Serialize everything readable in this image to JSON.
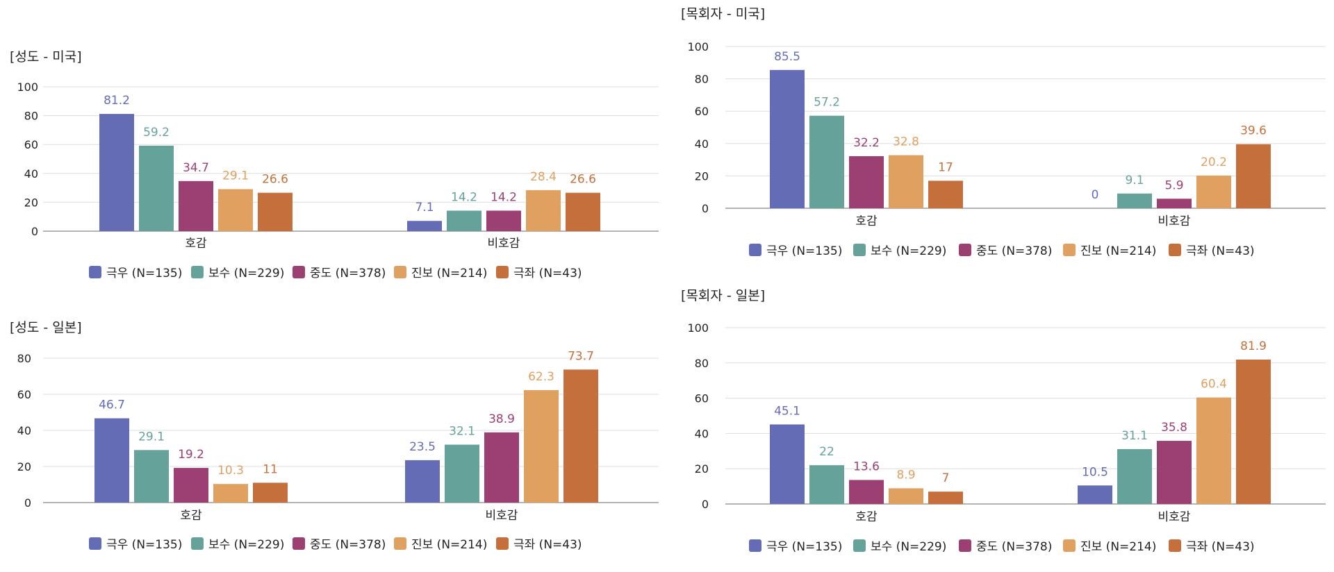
{
  "colors": {
    "gridline": "#dddddd",
    "axis": "#888888"
  },
  "legend": [
    {
      "label": "극우 (N=135)",
      "color": "#646cb6"
    },
    {
      "label": "보수 (N=229)",
      "color": "#65a29a"
    },
    {
      "label": "중도 (N=378)",
      "color": "#9c3f72"
    },
    {
      "label": "진보 (N=214)",
      "color": "#e0a060"
    },
    {
      "label": "극좌 (N=43)",
      "color": "#c5703c"
    }
  ],
  "chart_data": [
    {
      "type": "bar",
      "title": "[성도 - 미국]",
      "categories": [
        "호감",
        "비호감"
      ],
      "ylim": [
        0,
        100
      ],
      "yticks": [
        0,
        20,
        40,
        60,
        80,
        100
      ],
      "grid": true,
      "legend_position": "bottom",
      "series": [
        {
          "name": "극우 (N=135)",
          "values": [
            81.2,
            7.1
          ]
        },
        {
          "name": "보수 (N=229)",
          "values": [
            59.2,
            14.2
          ]
        },
        {
          "name": "중도 (N=378)",
          "values": [
            34.7,
            14.2
          ]
        },
        {
          "name": "진보 (N=214)",
          "values": [
            29.1,
            28.4
          ]
        },
        {
          "name": "극좌 (N=43)",
          "values": [
            26.6,
            26.6
          ]
        }
      ]
    },
    {
      "type": "bar",
      "title": "[목회자 - 미국]",
      "categories": [
        "호감",
        "비호감"
      ],
      "ylim": [
        0,
        100
      ],
      "yticks": [
        0,
        20,
        40,
        60,
        80,
        100
      ],
      "grid": true,
      "legend_position": "bottom",
      "series": [
        {
          "name": "극우 (N=135)",
          "values": [
            85.5,
            0
          ]
        },
        {
          "name": "보수 (N=229)",
          "values": [
            57.2,
            9.1
          ]
        },
        {
          "name": "중도 (N=378)",
          "values": [
            32.2,
            5.9
          ]
        },
        {
          "name": "진보 (N=214)",
          "values": [
            32.8,
            20.2
          ]
        },
        {
          "name": "극좌 (N=43)",
          "values": [
            17,
            39.6
          ]
        }
      ]
    },
    {
      "type": "bar",
      "title": "[성도 - 일본]",
      "categories": [
        "호감",
        "비호감"
      ],
      "ylim": [
        0,
        80
      ],
      "yticks": [
        0,
        20,
        40,
        60,
        80
      ],
      "grid": true,
      "legend_position": "bottom",
      "series": [
        {
          "name": "극우 (N=135)",
          "values": [
            46.7,
            23.5
          ]
        },
        {
          "name": "보수 (N=229)",
          "values": [
            29.1,
            32.1
          ]
        },
        {
          "name": "중도 (N=378)",
          "values": [
            19.2,
            38.9
          ]
        },
        {
          "name": "진보 (N=214)",
          "values": [
            10.3,
            62.3
          ]
        },
        {
          "name": "극좌 (N=43)",
          "values": [
            11,
            73.7
          ]
        }
      ]
    },
    {
      "type": "bar",
      "title": "[목회자 - 일본]",
      "categories": [
        "호감",
        "비호감"
      ],
      "ylim": [
        0,
        100
      ],
      "yticks": [
        0,
        20,
        40,
        60,
        80,
        100
      ],
      "grid": true,
      "legend_position": "bottom",
      "series": [
        {
          "name": "극우 (N=135)",
          "values": [
            45.1,
            10.5
          ]
        },
        {
          "name": "보수 (N=229)",
          "values": [
            22,
            31.1
          ]
        },
        {
          "name": "중도 (N=378)",
          "values": [
            13.6,
            35.8
          ]
        },
        {
          "name": "진보 (N=214)",
          "values": [
            8.9,
            60.4
          ]
        },
        {
          "name": "극좌 (N=43)",
          "values": [
            7,
            81.9
          ]
        }
      ]
    }
  ]
}
